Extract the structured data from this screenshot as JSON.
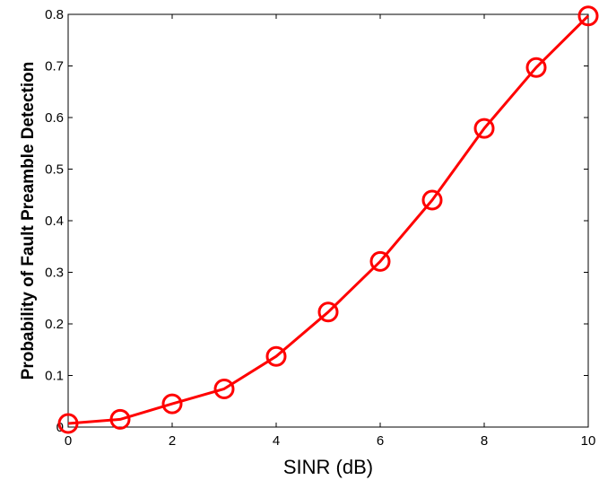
{
  "chart_data": {
    "type": "line",
    "title": "",
    "xlabel": "SINR (dB)",
    "ylabel": "Probability of Fault Preamble Detection",
    "xlim": [
      0,
      10
    ],
    "ylim": [
      0,
      0.8
    ],
    "x_ticks": [
      0,
      2,
      4,
      6,
      8,
      10
    ],
    "y_ticks": [
      0,
      0.1,
      0.2,
      0.3,
      0.4,
      0.5,
      0.6,
      0.7,
      0.8
    ],
    "grid": false,
    "legend": "none",
    "series": [
      {
        "marker": "circle",
        "color": "#ff0000",
        "x": [
          0,
          1,
          2,
          3,
          4,
          5,
          6,
          7,
          8,
          9,
          10
        ],
        "y": [
          0.007,
          0.015,
          0.045,
          0.074,
          0.137,
          0.223,
          0.321,
          0.44,
          0.579,
          0.697,
          0.797
        ]
      }
    ]
  }
}
